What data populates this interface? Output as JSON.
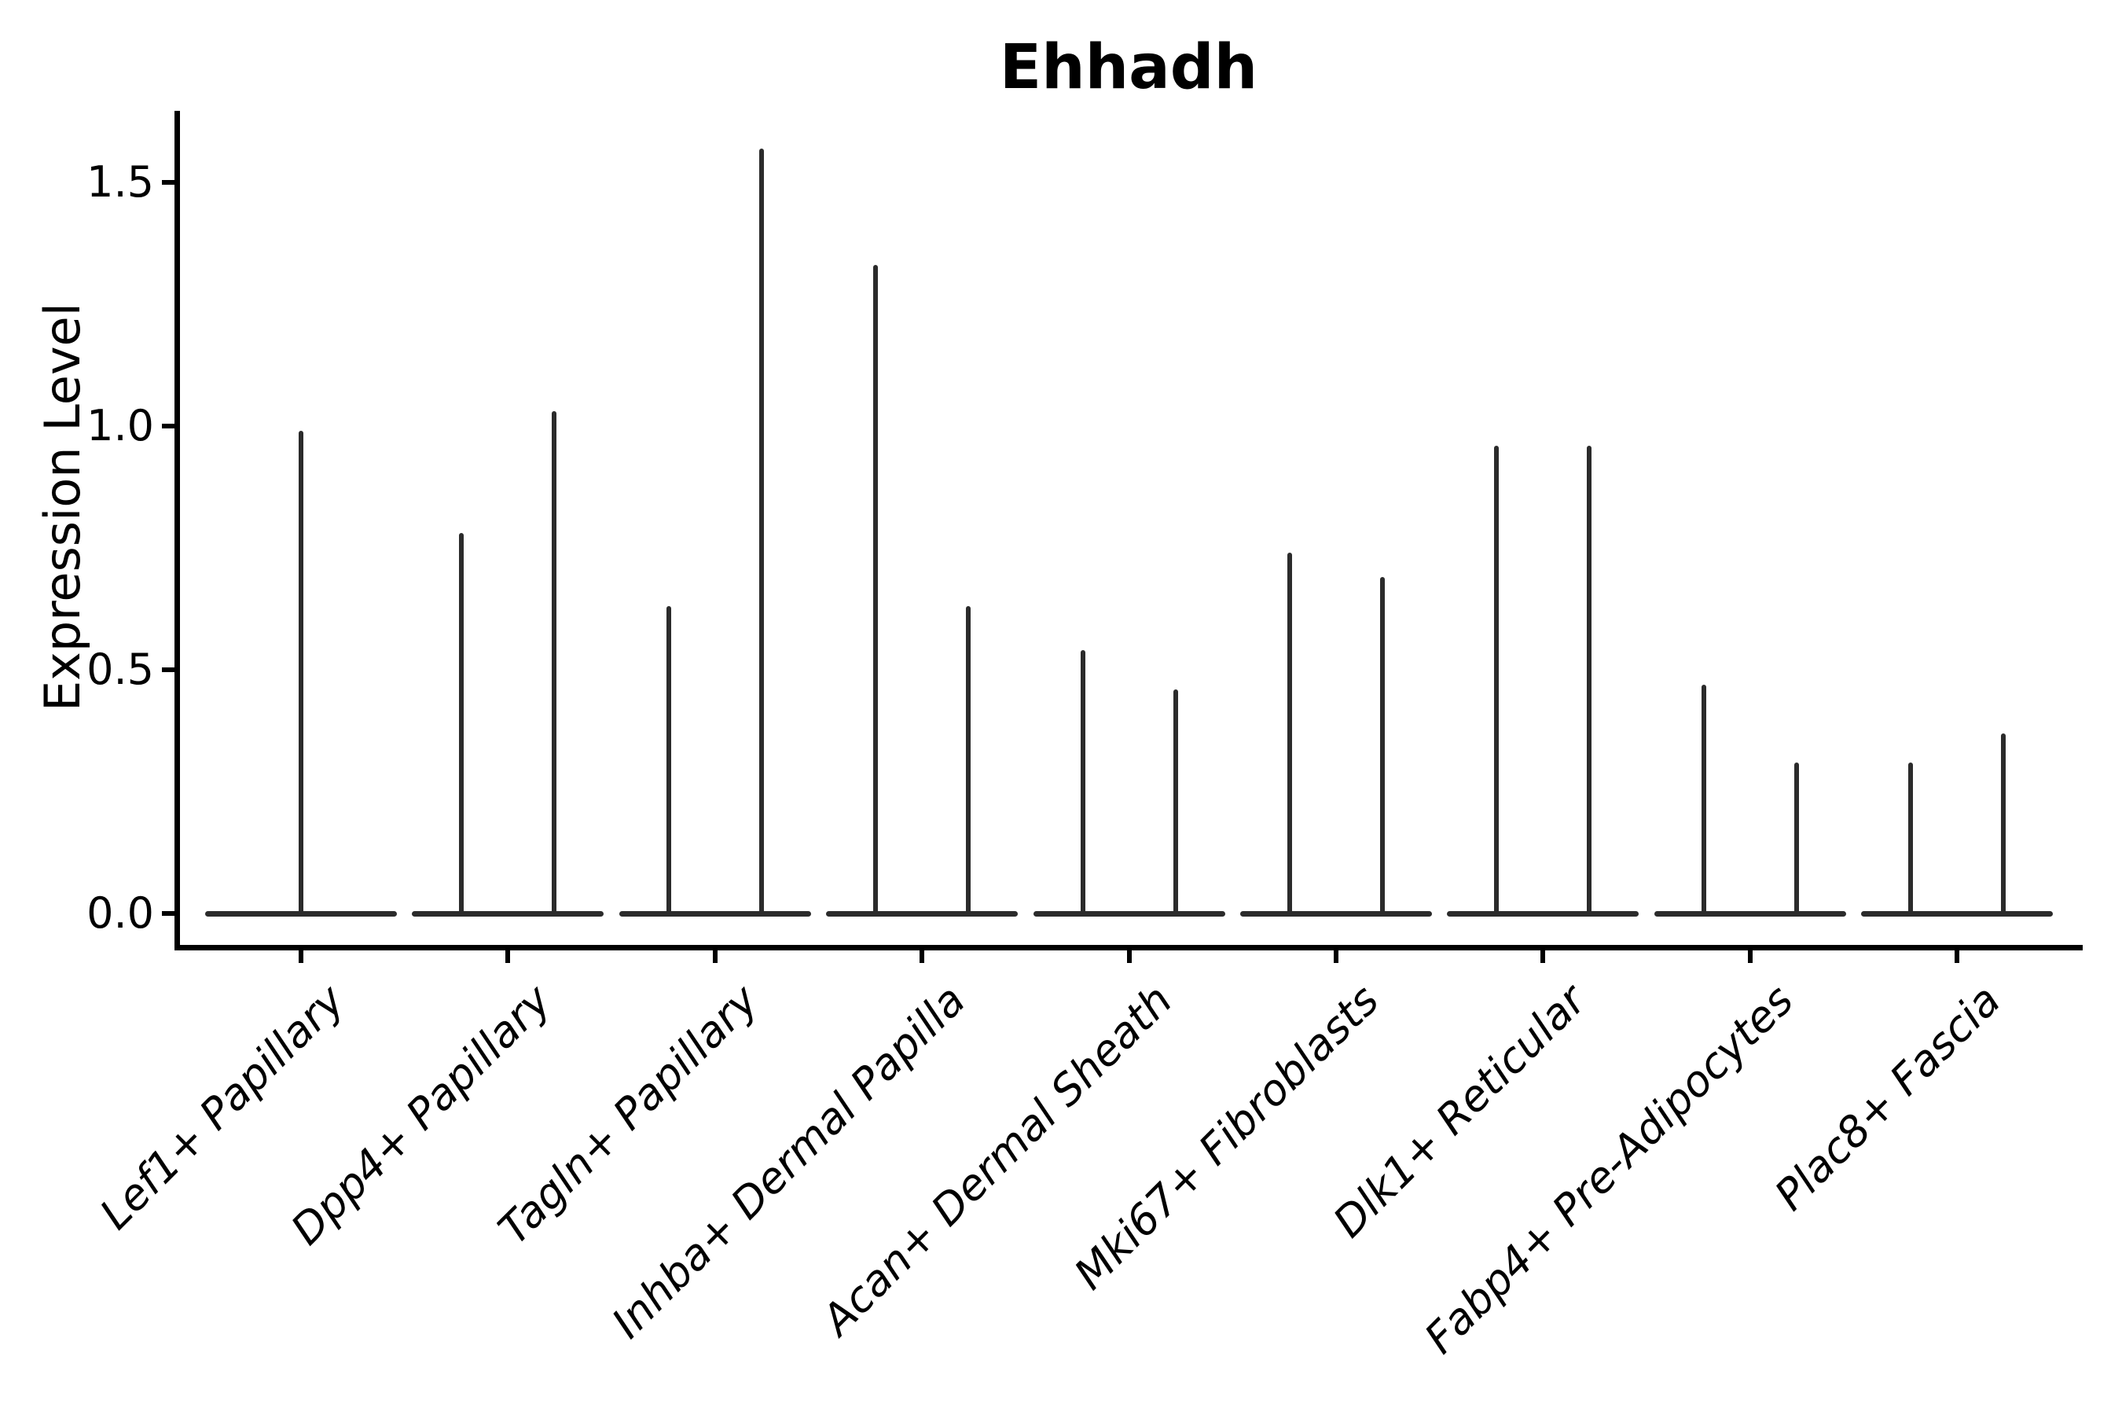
{
  "chart_data": {
    "type": "violin",
    "title": "Ehhadh",
    "xlabel": "",
    "ylabel": "Expression Level",
    "ylim": [
      0,
      1.66
    ],
    "yticks": [
      {
        "value": 0.0,
        "label": "0.0"
      },
      {
        "value": 0.5,
        "label": "0.5"
      },
      {
        "value": 1.0,
        "label": "1.0"
      },
      {
        "value": 1.5,
        "label": "1.5"
      }
    ],
    "grid": false,
    "legend": "none",
    "baseline_value": 0.0,
    "violin_color": "#2b2b2b",
    "axis_color": "#000000",
    "categories": [
      {
        "label": "Lef1+ Papillary",
        "violin_max": [
          0.99
        ]
      },
      {
        "label": "Dpp4+ Papillary",
        "violin_max": [
          0.78,
          1.03
        ]
      },
      {
        "label": "Tagln+ Papillary",
        "violin_max": [
          0.63,
          1.57
        ]
      },
      {
        "label": "Inhba+ Dermal Papilla",
        "violin_max": [
          1.33,
          0.63
        ]
      },
      {
        "label": "Acan+ Dermal Sheath",
        "violin_max": [
          0.54,
          0.46
        ]
      },
      {
        "label": "Mki67+ Fibroblasts",
        "violin_max": [
          0.74,
          0.69
        ]
      },
      {
        "label": "Dlk1+ Reticular",
        "violin_max": [
          0.96,
          0.96
        ]
      },
      {
        "label": "Fabp4+ Pre-Adipocytes",
        "violin_max": [
          0.47,
          0.31
        ]
      },
      {
        "label": "Plac8+ Fascia",
        "violin_max": [
          0.31,
          0.37
        ]
      }
    ]
  }
}
